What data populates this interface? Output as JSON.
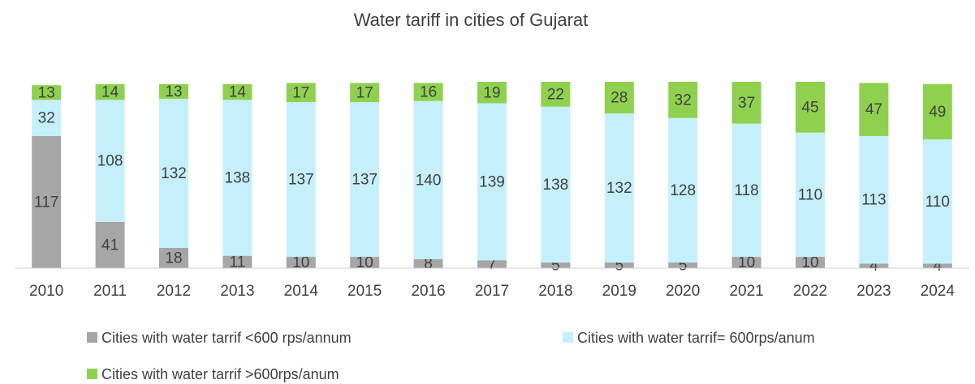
{
  "chart_data": {
    "type": "stacked_bar",
    "title": "Water tariff in cities of Gujarat",
    "categories": [
      "2010",
      "2011",
      "2012",
      "2013",
      "2014",
      "2015",
      "2016",
      "2017",
      "2018",
      "2019",
      "2020",
      "2021",
      "2022",
      "2023",
      "2024"
    ],
    "series": [
      {
        "name": "Cities with water tarrif <600 rps/annum",
        "color": "#a6a6a6",
        "values": [
          117,
          41,
          18,
          11,
          10,
          10,
          8,
          7,
          5,
          5,
          5,
          10,
          10,
          4,
          4
        ]
      },
      {
        "name": "Cities with water tarrif= 600rps/anum",
        "color": "#c6effc",
        "values": [
          32,
          108,
          132,
          138,
          137,
          137,
          140,
          139,
          138,
          132,
          128,
          118,
          110,
          113,
          110
        ]
      },
      {
        "name": "Cities with water tarrif >600rps/anum",
        "color": "#8fd14f",
        "values": [
          13,
          14,
          13,
          14,
          17,
          17,
          16,
          19,
          22,
          28,
          32,
          37,
          45,
          47,
          49
        ]
      }
    ]
  }
}
